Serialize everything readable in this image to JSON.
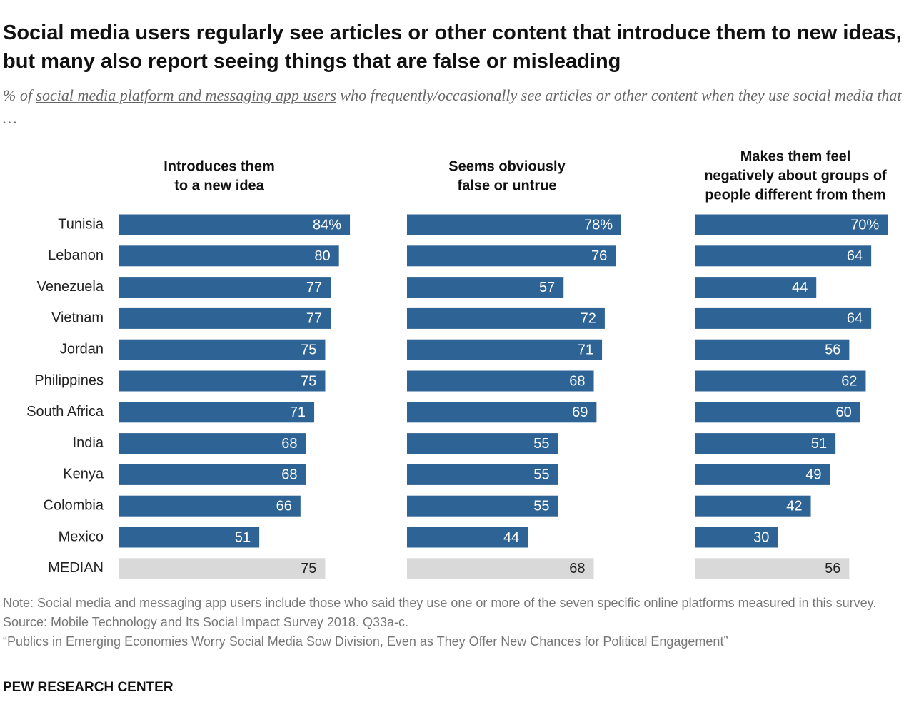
{
  "title": "Social media users regularly see articles or other content that introduce them to new ideas, but many also report seeing things that are false or misleading",
  "subtitle": [
    "% of ",
    "social media platform and messaging app users",
    " who frequently/occasionally see articles or other content when they use social media that …"
  ],
  "categories": [
    "Tunisia",
    "Lebanon",
    "Venezuela",
    "Vietnam",
    "Jordan",
    "Philippines",
    "South Africa",
    "India",
    "Kenya",
    "Colombia",
    "Mexico",
    "MEDIAN"
  ],
  "colors": [
    "#2e6395",
    "#2e6395",
    "#2e6395",
    "#2e6395",
    "#2e6395",
    "#2e6395",
    "#2e6395",
    "#2e6395",
    "#2e6395",
    "#2e6395",
    "#2e6395",
    "#d9d9d9"
  ],
  "label_colors": [
    "#ffffff",
    "#ffffff",
    "#ffffff",
    "#ffffff",
    "#ffffff",
    "#ffffff",
    "#ffffff",
    "#ffffff",
    "#ffffff",
    "#ffffff",
    "#ffffff",
    "#222222"
  ],
  "chart_data": [
    {
      "type": "bar",
      "title": [
        "Introduces them",
        "to a new idea"
      ],
      "values": [
        84,
        80,
        77,
        77,
        75,
        75,
        71,
        68,
        68,
        66,
        51,
        75
      ],
      "value_labels": [
        "84%",
        "80",
        "77",
        "77",
        "75",
        "75",
        "71",
        "68",
        "68",
        "66",
        "51",
        "75"
      ]
    },
    {
      "type": "bar",
      "title": [
        "Seems obviously",
        "false or untrue"
      ],
      "values": [
        78,
        76,
        57,
        72,
        71,
        68,
        69,
        55,
        55,
        55,
        44,
        68
      ],
      "value_labels": [
        "78%",
        "76",
        "57",
        "72",
        "71",
        "68",
        "69",
        "55",
        "55",
        "55",
        "44",
        "68"
      ]
    },
    {
      "type": "bar",
      "title": [
        "Makes them feel",
        "negatively about groups of",
        "people different from them"
      ],
      "values": [
        70,
        64,
        44,
        64,
        56,
        62,
        60,
        51,
        49,
        42,
        30,
        56
      ],
      "value_labels": [
        "70%",
        "64",
        "44",
        "64",
        "56",
        "62",
        "60",
        "51",
        "49",
        "42",
        "30",
        "56"
      ]
    }
  ],
  "notes": [
    "Note: Social media and messaging app users include those who said they use one or more of the seven specific online platforms measured in this survey.",
    "Source: Mobile Technology and Its Social Impact Survey 2018. Q33a-c.",
    "“Publics in Emerging Economies Worry Social Media Sow Division, Even as They Offer New Chances for Political Engagement”"
  ],
  "branding": "PEW RESEARCH CENTER"
}
